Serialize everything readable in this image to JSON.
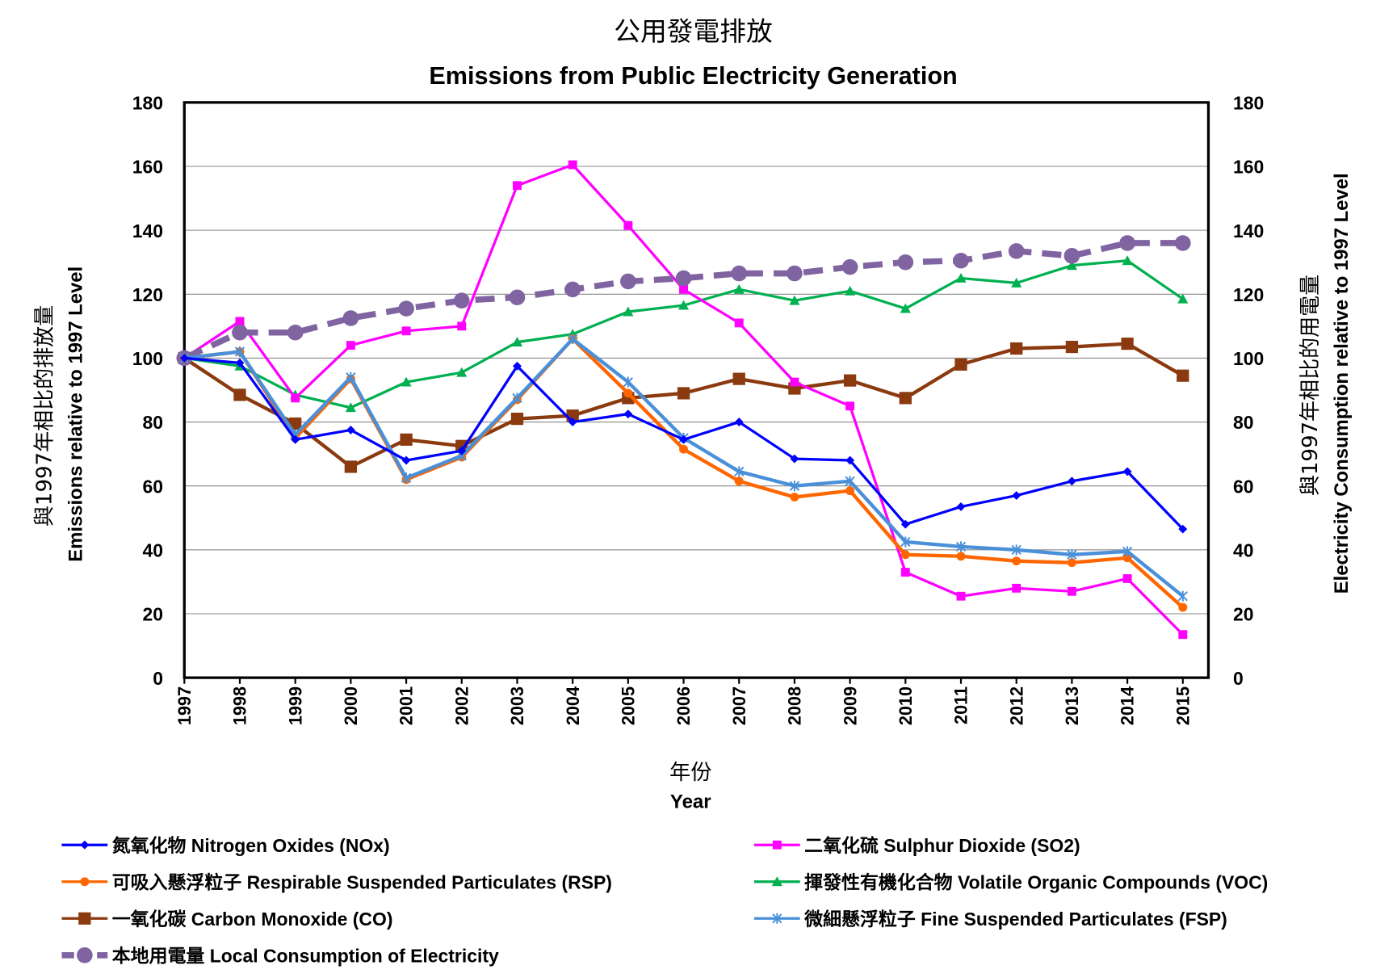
{
  "chart_data": {
    "type": "line",
    "title_cn": "公用發電排放",
    "title": "Emissions from Public Electricity Generation",
    "xlabel_cn": "年份",
    "xlabel": "Year",
    "ylabel_cn": "與1997年相比的排放量",
    "ylabel": "Emissions relative to 1997 Level",
    "y2label_cn": "與1997年相比的用電量",
    "y2label": "Electricity Consumption relative to 1997 Level",
    "ylim": [
      0,
      180
    ],
    "y2lim": [
      0,
      180
    ],
    "yticks": [
      0,
      20,
      40,
      60,
      80,
      100,
      120,
      140,
      160,
      180
    ],
    "grid": true,
    "legend_position": "bottom",
    "x": [
      "1997",
      "1998",
      "1999",
      "2000",
      "2001",
      "2002",
      "2003",
      "2004",
      "2005",
      "2006",
      "2007",
      "2008",
      "2009",
      "2010",
      "2011",
      "2012",
      "2013",
      "2014",
      "2015"
    ],
    "series": [
      {
        "name": "氮氧化物 Nitrogen Oxides (NOx)",
        "color": "#0000FF",
        "marker": "diamond",
        "axis": "left",
        "values": [
          100,
          98.5,
          74.5,
          77.5,
          68,
          71,
          97.5,
          80,
          82.5,
          74.5,
          80,
          68.5,
          68,
          48,
          53.5,
          57,
          61.5,
          64.5,
          46.5
        ]
      },
      {
        "name": "二氧化硫 Sulphur Dioxide (SO2)",
        "color": "#FF00FF",
        "marker": "square",
        "axis": "left",
        "values": [
          100,
          111.5,
          87.5,
          104,
          108.5,
          110,
          154,
          160.5,
          141.5,
          121.5,
          111,
          92.5,
          85,
          33,
          25.5,
          28,
          27,
          31,
          13.5
        ]
      },
      {
        "name": "可吸入懸浮粒子 Respirable Suspended Particulates (RSP)",
        "color": "#FF6600",
        "marker": "circle",
        "axis": "left",
        "values": [
          100,
          102,
          75,
          93.5,
          62,
          69,
          87,
          106,
          89,
          71.5,
          61.5,
          56.5,
          58.5,
          38.5,
          38,
          36.5,
          36,
          37.5,
          22
        ]
      },
      {
        "name": "揮發性有機化合物 Volatile Organic Compounds (VOC)",
        "color": "#00B050",
        "marker": "triangle",
        "axis": "left",
        "values": [
          100,
          97.5,
          88.5,
          84.5,
          92.5,
          95.5,
          105,
          107.5,
          114.5,
          116.5,
          121.5,
          118,
          121,
          115.5,
          125,
          123.5,
          129,
          130.5,
          118.5
        ]
      },
      {
        "name": "一氧化碳 Carbon Monoxide (CO)",
        "color": "#8B3A0F",
        "marker": "bigsquare",
        "axis": "left",
        "values": [
          100,
          88.5,
          79.5,
          66,
          74.5,
          72.5,
          81,
          82,
          87.5,
          89,
          93.5,
          90.5,
          93,
          87.5,
          98,
          103,
          103.5,
          104.5,
          94.5
        ]
      },
      {
        "name": "微細懸浮粒子 Fine Suspended Particulates (FSP)",
        "color": "#4A90D9",
        "marker": "star",
        "axis": "left",
        "values": [
          100,
          102,
          76,
          94,
          62.5,
          69.5,
          87.5,
          106,
          92.5,
          75,
          64.5,
          60,
          61.5,
          42.5,
          41,
          40,
          38.5,
          39.5,
          25.5
        ]
      },
      {
        "name": "本地用電量 Local Consumption of Electricity",
        "color": "#8064A2",
        "marker": "bigcircle",
        "axis": "right",
        "dashed": true,
        "values": [
          100,
          108,
          108,
          112.5,
          115.5,
          118,
          119,
          121.5,
          124,
          125,
          126.5,
          126.5,
          128.5,
          130,
          130.5,
          133.5,
          132,
          136,
          136
        ]
      }
    ]
  }
}
